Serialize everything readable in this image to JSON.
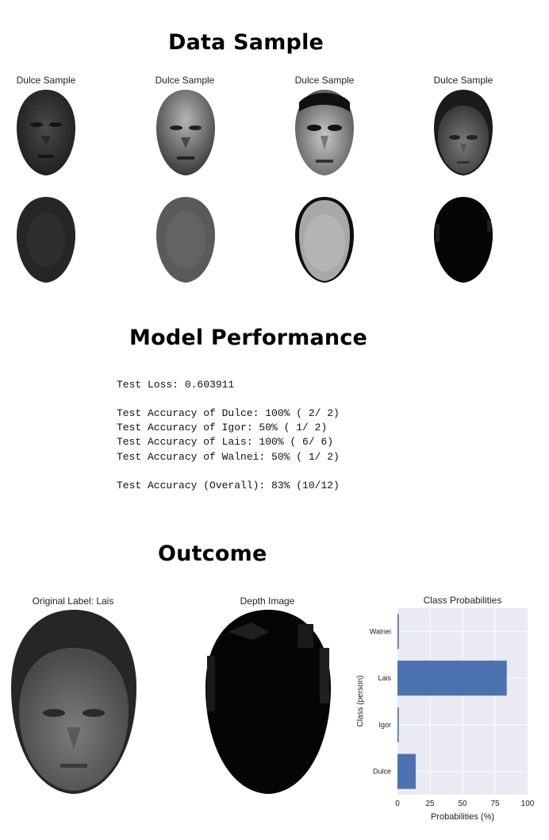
{
  "sections": {
    "data_sample": "Data Sample",
    "model_performance": "Model Performance",
    "outcome": "Outcome"
  },
  "samples": [
    {
      "caption": "Dulce Sample"
    },
    {
      "caption": "Dulce Sample"
    },
    {
      "caption": "Dulce Sample"
    },
    {
      "caption": "Dulce Sample"
    }
  ],
  "performance": {
    "loss": "Test Loss: 0.603911",
    "acc_dulce": "Test Accuracy of Dulce: 100% ( 2/ 2)",
    "acc_igor": "Test Accuracy of Igor: 50% ( 1/ 2)",
    "acc_lais": "Test Accuracy of Lais: 100% ( 6/ 6)",
    "acc_walnei": "Test Accuracy of Walnei: 50% ( 1/ 2)",
    "overall": "Test Accuracy (Overall): 83% (10/12)"
  },
  "outcome": {
    "original_label": "Original Label: Lais",
    "depth_title": "Depth Image"
  },
  "chart_data": {
    "type": "bar",
    "orientation": "horizontal",
    "title": "Class Probabilities",
    "xlabel": "Probabilities (%)",
    "ylabel": "Class (person)",
    "categories": [
      "Dulce",
      "Igor",
      "Lais",
      "Walnei"
    ],
    "values": [
      14,
      1,
      84,
      1
    ],
    "xlim": [
      0,
      100
    ],
    "xticks": [
      0,
      25,
      50,
      75,
      100
    ],
    "grid": true,
    "bar_color": "#4c72b0",
    "background": "#eaeaf2"
  }
}
